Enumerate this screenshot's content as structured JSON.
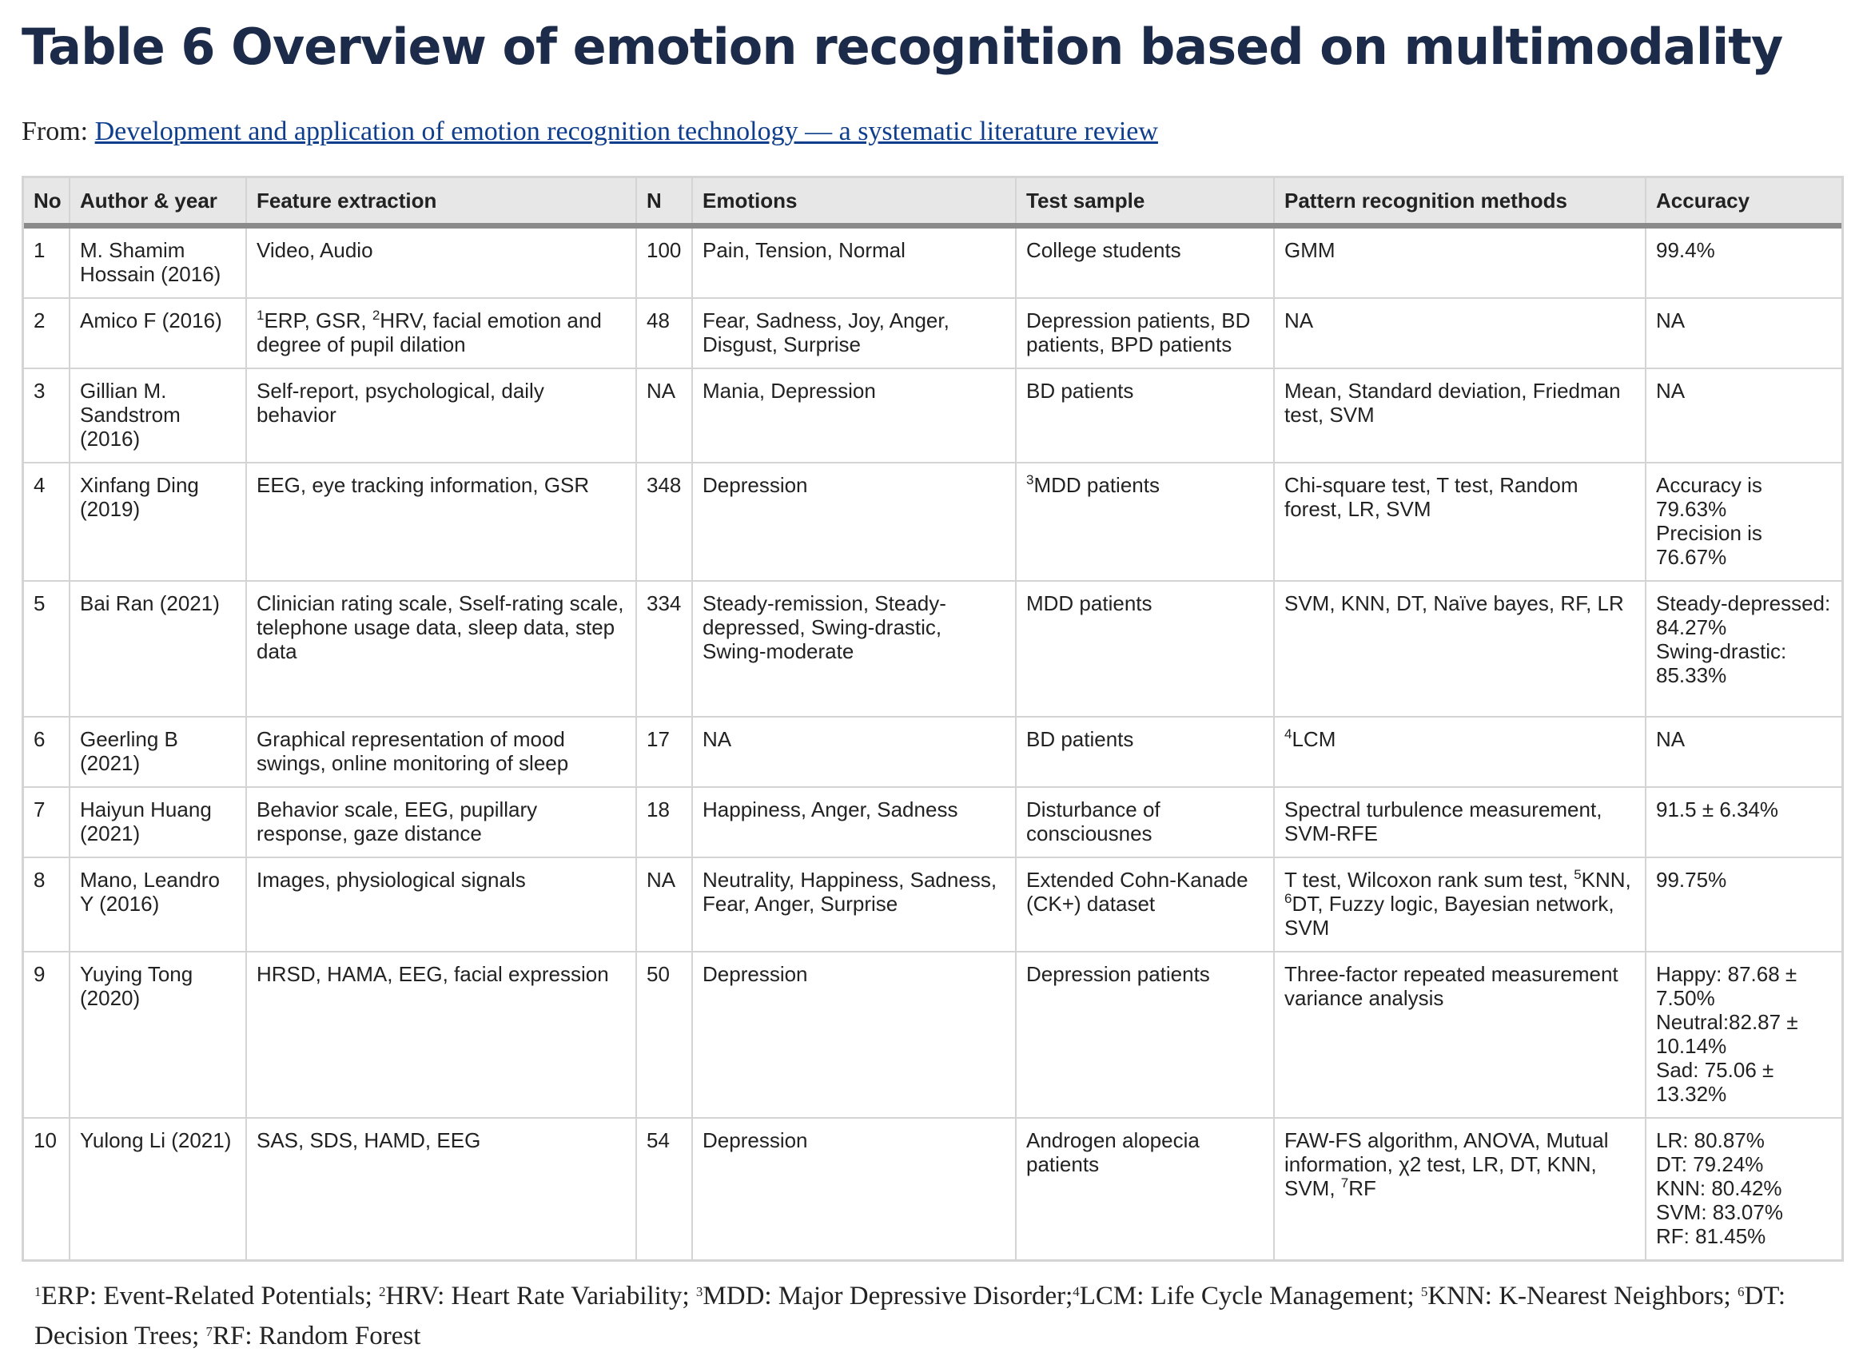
{
  "title": "Table 6 Overview of emotion recognition based on multimodality",
  "from_label": "From:",
  "from_link": "Development and application of emotion recognition technology — a systematic literature review",
  "headers": [
    "No",
    "Author & year",
    "Feature extraction",
    "N",
    "Emotions",
    "Test sample",
    "Pattern recognition methods",
    "Accuracy"
  ],
  "rows": [
    {
      "no": "1",
      "author": "M. Shamim Hossain (2016)",
      "feature": "Video, Audio",
      "n": "100",
      "emotions": "Pain, Tension, Normal",
      "sample": "College students",
      "methods": "GMM",
      "accuracy": [
        "99.4%"
      ]
    },
    {
      "no": "2",
      "author": "Amico F (2016)",
      "feature_sup1": "1",
      "feature_a": "ERP, GSR, ",
      "feature_sup2": "2",
      "feature_b": "HRV, facial emotion and degree of pupil dilation",
      "n": "48",
      "emotions": "Fear, Sadness, Joy, Anger, Disgust, Surprise",
      "sample": "Depression patients, BD patients, BPD patients",
      "methods": "NA",
      "accuracy": [
        "NA"
      ]
    },
    {
      "no": "3",
      "author": "Gillian M. Sandstrom (2016)",
      "feature": "Self-report, psychological, daily behavior",
      "n": "NA",
      "emotions": "Mania, Depression",
      "sample": "BD patients",
      "methods": "Mean, Standard deviation, Friedman test, SVM",
      "accuracy": [
        "NA"
      ]
    },
    {
      "no": "4",
      "author": "Xinfang Ding (2019)",
      "feature": "EEG, eye tracking information, GSR",
      "n": "348",
      "emotions": "Depression",
      "sample_sup": "3",
      "sample": "MDD patients",
      "methods": "Chi-square test, T test, Random forest, LR, SVM",
      "accuracy": [
        "Accuracy is 79.63%",
        "Precision is 76.67%"
      ]
    },
    {
      "no": "5",
      "author": "Bai Ran (2021)",
      "feature": "Clinician rating scale, Sself-rating scale, telephone usage data, sleep data, step data",
      "n": "334",
      "emotions": "Steady-remission, Steady-depressed, Swing-drastic, Swing-moderate",
      "sample": "MDD patients",
      "methods": "SVM, KNN, DT, Naïve bayes, RF, LR",
      "accuracy": [
        "Steady-depressed: 84.27%",
        "Swing-drastic: 85.33%"
      ]
    },
    {
      "no": "6",
      "author": "Geerling B (2021)",
      "feature": "Graphical representation of mood swings, online monitoring of sleep",
      "n": "17",
      "emotions": "NA",
      "sample": "BD patients",
      "methods_sup": "4",
      "methods": "LCM",
      "accuracy": [
        "NA"
      ]
    },
    {
      "no": "7",
      "author": "Haiyun Huang (2021)",
      "feature": "Behavior scale, EEG, pupillary response, gaze distance",
      "n": "18",
      "emotions": "Happiness, Anger, Sadness",
      "sample": "Disturbance of consciousnes",
      "methods": "Spectral turbulence measurement, SVM-RFE",
      "accuracy": [
        "91.5 ± 6.34%"
      ]
    },
    {
      "no": "8",
      "author": "Mano, Leandro Y (2016)",
      "feature": "Images, physiological signals",
      "n": "NA",
      "emotions": "Neutrality, Happiness, Sadness, Fear, Anger, Surprise",
      "sample": "Extended Cohn-Kanade (CK+) dataset",
      "methods_a": "T test, Wilcoxon rank sum test, ",
      "methods_sup1": "5",
      "methods_b": "KNN, ",
      "methods_sup2": "6",
      "methods_c": "DT, Fuzzy logic, Bayesian network, SVM",
      "accuracy": [
        "99.75%"
      ]
    },
    {
      "no": "9",
      "author": "Yuying Tong (2020)",
      "feature": "HRSD, HAMA, EEG, facial expression",
      "n": "50",
      "emotions": "Depression",
      "sample": "Depression patients",
      "methods": "Three-factor repeated measurement variance analysis",
      "accuracy": [
        "Happy: 87.68 ± 7.50%",
        "Neutral:82.87 ± 10.14%",
        "Sad: 75.06 ± 13.32%"
      ]
    },
    {
      "no": "10",
      "author": "Yulong Li (2021)",
      "feature": "SAS, SDS, HAMD, EEG",
      "n": "54",
      "emotions": "Depression",
      "sample": "Androgen alopecia patients",
      "methods_a": "FAW-FS algorithm, ANOVA, Mutual information, χ2 test, LR, DT, KNN, SVM, ",
      "methods_sup": "7",
      "methods_b": "RF",
      "accuracy": [
        "LR: 80.87%",
        "DT: 79.24%",
        "KNN: 80.42%",
        "SVM: 83.07%",
        "RF: 81.45%"
      ]
    }
  ],
  "footnotes": [
    {
      "sup": "1",
      "text": "ERP: Event-Related Potentials; "
    },
    {
      "sup": "2",
      "text": "HRV: Heart Rate Variability; "
    },
    {
      "sup": "3",
      "text": "MDD: Major Depressive Disorder;"
    },
    {
      "sup": "4",
      "text": "LCM: Life Cycle Management; "
    },
    {
      "sup": "5",
      "text": "KNN: K-Nearest Neighbors; "
    },
    {
      "sup": "6",
      "text": "DT: Decision Trees; "
    },
    {
      "sup": "7",
      "text": "RF: Random Forest"
    }
  ]
}
